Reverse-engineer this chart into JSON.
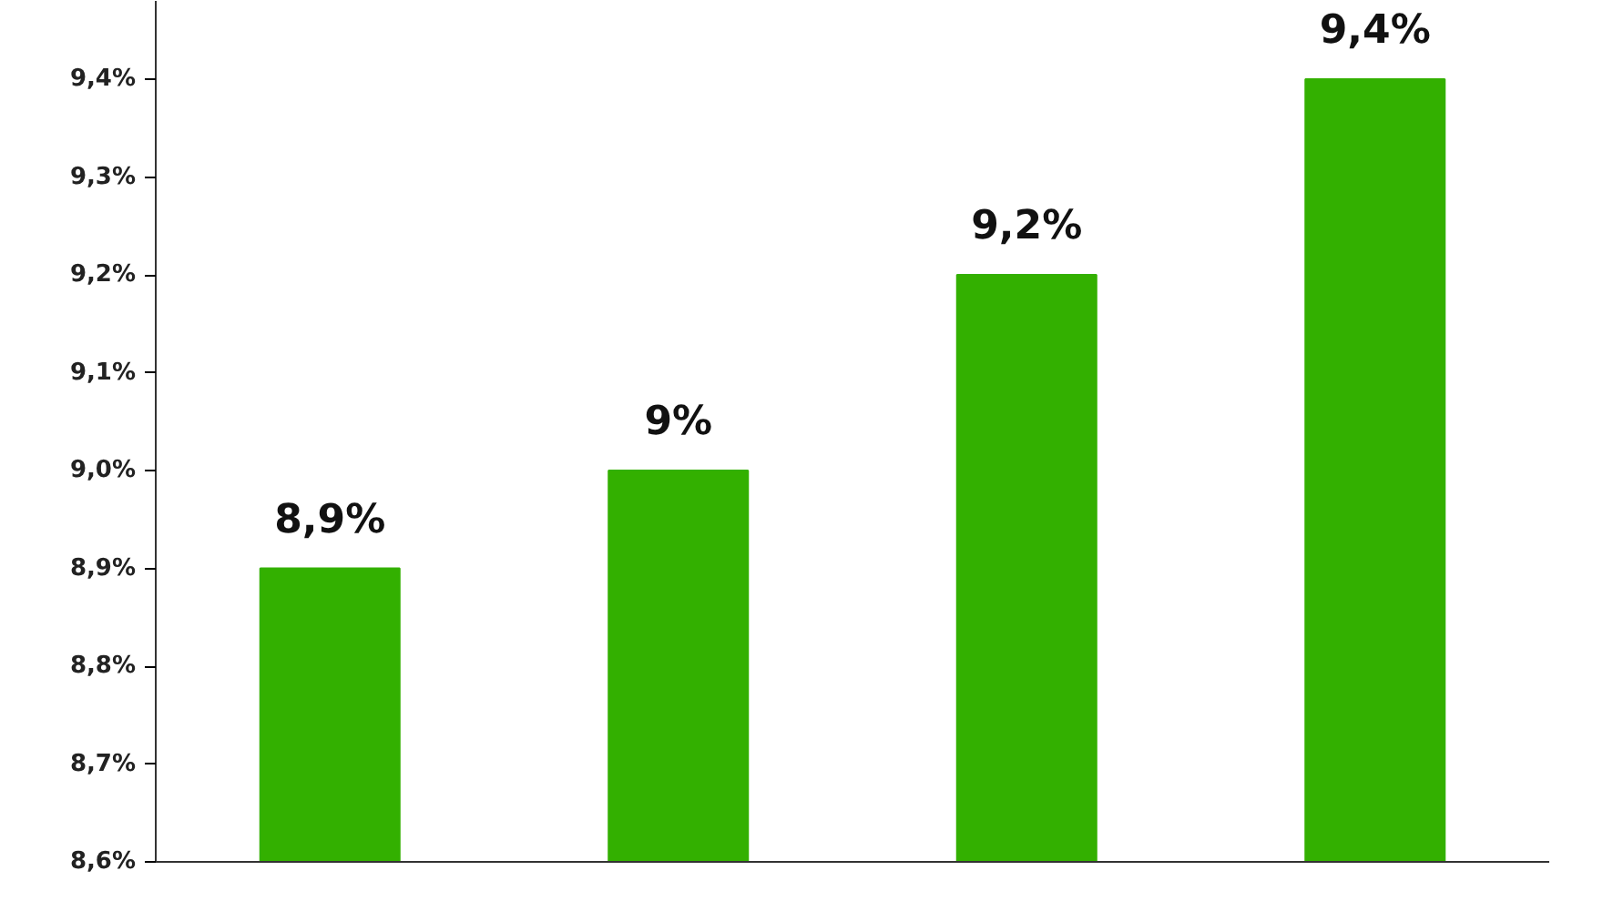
{
  "chart_data": {
    "type": "bar",
    "categories": [
      null,
      null,
      null,
      null
    ],
    "values": [
      8.9,
      9.0,
      9.2,
      9.4
    ],
    "color": "#33b000",
    "value_labels": [
      "8,9%",
      "9%",
      "9,2%",
      "9,4%"
    ],
    "ylim": [
      8.6,
      9.48
    ],
    "yticks": [
      {
        "value": 8.6,
        "label": "8,6%"
      },
      {
        "value": 8.7,
        "label": "8,7%"
      },
      {
        "value": 8.8,
        "label": "8,8%"
      },
      {
        "value": 8.9,
        "label": "8,9%"
      },
      {
        "value": 9.0,
        "label": "9,0%"
      },
      {
        "value": 9.1,
        "label": "9,1%"
      },
      {
        "value": 9.2,
        "label": "9,2%"
      },
      {
        "value": 9.3,
        "label": "9,3%"
      },
      {
        "value": 9.4,
        "label": "9,4%"
      }
    ],
    "grid": false
  }
}
